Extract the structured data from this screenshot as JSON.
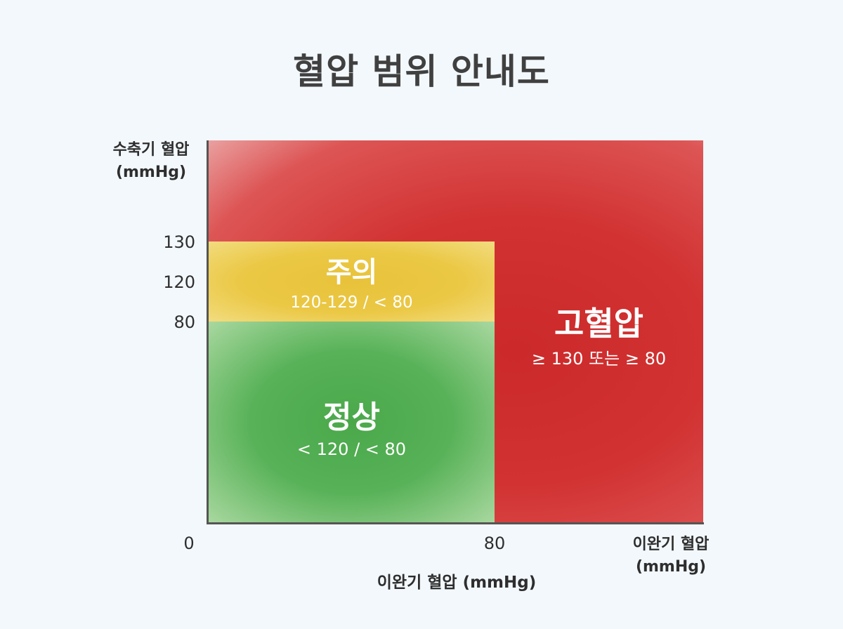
{
  "chart_data": {
    "type": "heatmap",
    "title": "혈압 범위 안내도",
    "ylabel": [
      "수축기 혈압",
      "(mmHg)"
    ],
    "xlabel": "이완기 혈압 (mmHg)",
    "xlabel_right": [
      "이완기 혈압",
      "(mmHg)"
    ],
    "yticks": [
      "130",
      "120",
      "80"
    ],
    "xticks": [
      "0",
      "80"
    ],
    "regions": [
      {
        "name": "정상",
        "range": "< 120 / < 80",
        "color": "#58b258"
      },
      {
        "name": "주의",
        "range": "120-129 / < 80",
        "color": "#ebc845"
      },
      {
        "name": "고혈압",
        "range": "≥ 130 또는 ≥ 80",
        "color": "#d23232"
      }
    ]
  }
}
